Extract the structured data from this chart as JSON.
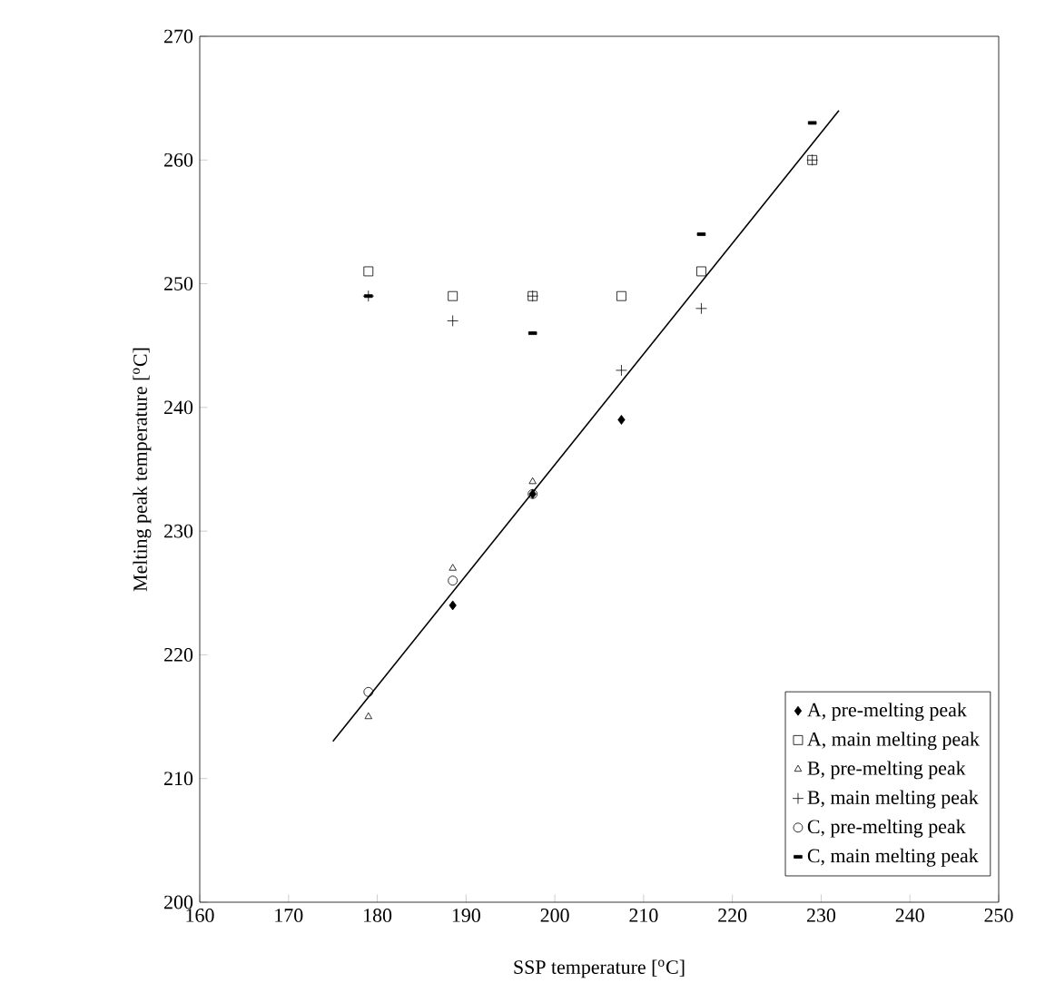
{
  "chart_data": {
    "type": "scatter",
    "xlabel": "SSP temperature [$^{o}$C]",
    "ylabel": "Melting peak temperature [$^{o}$C]",
    "xlim": [
      160,
      250
    ],
    "ylim": [
      200,
      270
    ],
    "xticks": [
      160,
      170,
      180,
      190,
      200,
      210,
      220,
      230,
      240,
      250
    ],
    "yticks": [
      200,
      210,
      220,
      230,
      240,
      250,
      260,
      270
    ],
    "legend": "bottom right",
    "grid": false,
    "series": [
      {
        "name": "A, pre-melting peak",
        "color": "#000000",
        "marker": "diamond",
        "x": [
          188.5,
          197.5,
          207.5
        ],
        "values": [
          224,
          233,
          239
        ]
      },
      {
        "name": "A, main melting peak",
        "color": "#000000",
        "marker": "square",
        "x": [
          179,
          188.5,
          197.5,
          207.5,
          216.5,
          229
        ],
        "values": [
          251,
          249,
          249,
          249,
          251,
          260
        ]
      },
      {
        "name": "B, pre-melting peak",
        "color": "#000000",
        "marker": "triangle",
        "x": [
          179,
          188.5,
          197.5
        ],
        "values": [
          215,
          227,
          234
        ]
      },
      {
        "name": "B, main melting peak",
        "color": "#000000",
        "x": [
          179,
          188.5,
          197.5,
          207.5,
          216.5,
          229
        ],
        "values": [
          249,
          247,
          249,
          243,
          248,
          260
        ]
      },
      {
        "name": "C, pre-melting peak",
        "color": "#000000",
        "marker": "circle",
        "x": [
          179,
          188.5,
          197.5
        ],
        "values": [
          217,
          226,
          233
        ]
      },
      {
        "name": "C, main melting peak",
        "color": "#000000",
        "x": [
          179,
          197.5,
          216.5,
          229
        ],
        "values": [
          249,
          246,
          254,
          263
        ]
      },
      {
        "type": "line",
        "color": "#000000",
        "marker": "none",
        "x": [
          175,
          232
        ],
        "values": [
          213,
          264
        ]
      }
    ]
  }
}
